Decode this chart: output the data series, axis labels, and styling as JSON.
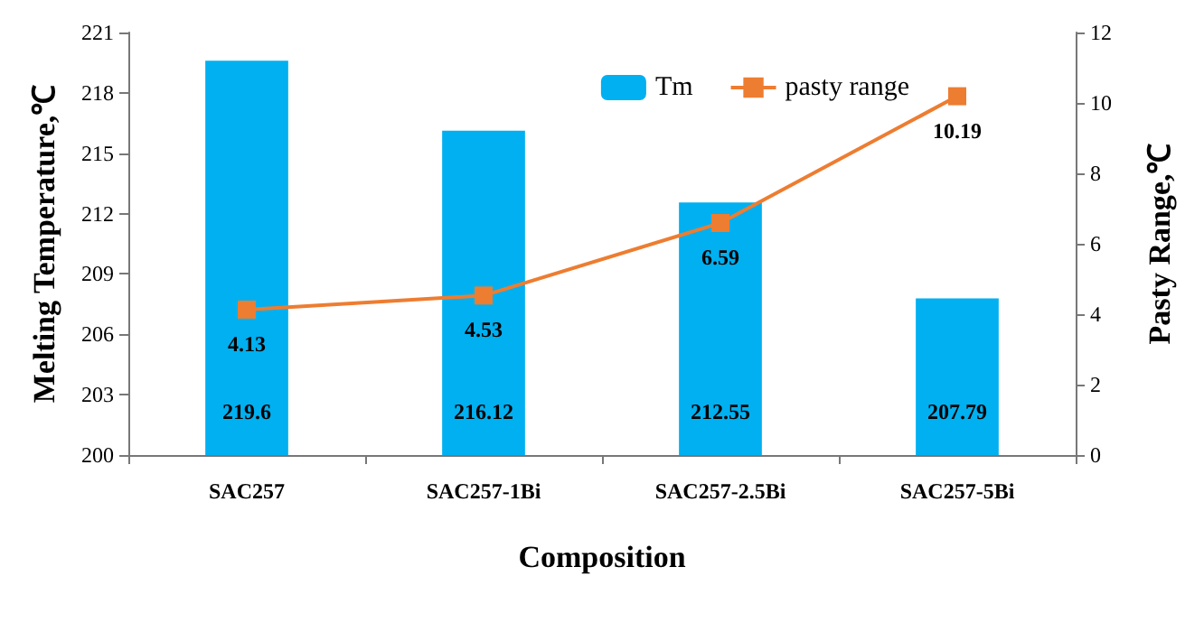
{
  "chart_data": {
    "type": "bar",
    "xlabel": "Composition",
    "ylabel": "Melting Temperature,℃",
    "y2label": "Pasty Range,℃",
    "categories": [
      "SAC257",
      "SAC257-1Bi",
      "SAC257-2.5Bi",
      "SAC257-5Bi"
    ],
    "series": [
      {
        "name": "Tm",
        "color": "#00b0f0",
        "values": [
          219.6,
          216.12,
          212.55,
          207.79
        ]
      },
      {
        "name": "pasty range",
        "type": "line",
        "axis": "y2",
        "color": "#ed7d31",
        "marker": "square",
        "values": [
          4.13,
          4.53,
          6.59,
          10.19
        ]
      }
    ],
    "ylim": [
      200,
      221
    ],
    "yticks": [
      200,
      203,
      206,
      209,
      212,
      215,
      218,
      221
    ],
    "y2lim": [
      0,
      12
    ],
    "y2ticks": [
      0,
      2,
      4,
      6,
      8,
      10,
      12
    ],
    "data_labels": true,
    "legend": "top right",
    "grid": false
  }
}
